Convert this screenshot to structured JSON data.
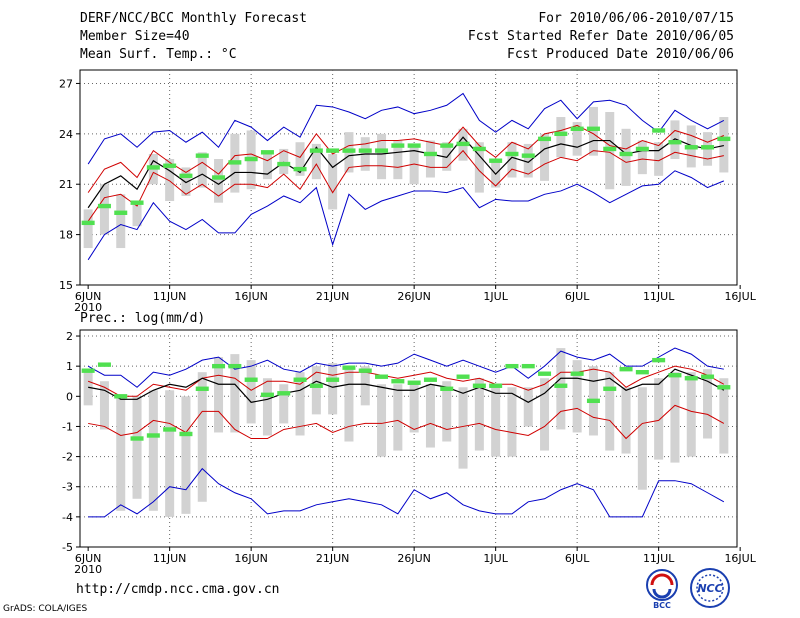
{
  "header": {
    "title": "DERF/NCC/BCC Monthly Forecast",
    "member_size": "Member Size=40",
    "variable": "Mean Surf. Temp.: °C",
    "forecast_range": "For 2010/06/06-2010/07/15",
    "start_date": "Fcst Started Refer Date 2010/06/05",
    "produced_date": "Fcst Produced Date 2010/06/06"
  },
  "footer": {
    "url": "http://cmdp.ncc.cma.gov.cn",
    "credit": "GrADS: COLA/IGES",
    "logos": [
      "BCC",
      "NCC"
    ]
  },
  "colors": {
    "max_line": "#0000c8",
    "mean_line": "#000000",
    "spread_line": "#d00000",
    "box": "#d2d2d2",
    "obs": "#50e050"
  },
  "chart_data": [
    {
      "type": "line",
      "title": "Mean Surf. Temp.: °C",
      "x_tick_labels": [
        "6JUN",
        "11JUN",
        "16JUN",
        "21JUN",
        "26JUN",
        "1JUL",
        "6JUL",
        "11JUL",
        "16JUL"
      ],
      "x_year_label": "2010",
      "y_ticks": [
        "15",
        "18",
        "21",
        "24",
        "27"
      ],
      "ylim": [
        15,
        27.8
      ],
      "grid": true,
      "days": 40,
      "series": [
        {
          "name": "max",
          "values": [
            22.2,
            23.7,
            24.0,
            23.2,
            24.1,
            24.2,
            23.5,
            24.1,
            23.2,
            24.8,
            24.4,
            23.6,
            24.4,
            23.8,
            25.7,
            25.6,
            25.3,
            24.9,
            25.4,
            25.6,
            25.2,
            25.4,
            25.7,
            26.4,
            24.8,
            24.1,
            24.8,
            24.3,
            25.5,
            26.0,
            24.9,
            25.9,
            26.0,
            25.7,
            24.8,
            24.1,
            25.4,
            24.8,
            24.3,
            24.8
          ]
        },
        {
          "name": "upper",
          "values": [
            20.5,
            21.9,
            22.3,
            21.4,
            23.0,
            22.3,
            21.7,
            22.3,
            21.6,
            22.7,
            22.8,
            22.4,
            23.0,
            22.6,
            24.0,
            22.8,
            23.3,
            23.4,
            23.6,
            23.6,
            23.7,
            23.5,
            23.3,
            24.4,
            23.3,
            22.6,
            23.5,
            23.1,
            24.0,
            24.2,
            24.5,
            24.0,
            23.3,
            23.1,
            23.6,
            23.3,
            24.2,
            23.9,
            23.5,
            23.9
          ]
        },
        {
          "name": "mean",
          "values": [
            19.6,
            21.0,
            21.5,
            20.7,
            22.4,
            21.8,
            21.1,
            21.6,
            21.0,
            21.7,
            21.7,
            21.6,
            22.3,
            21.7,
            23.2,
            22.0,
            22.7,
            22.8,
            22.8,
            22.9,
            23.0,
            22.8,
            22.6,
            23.8,
            22.7,
            21.6,
            22.6,
            22.3,
            23.1,
            23.4,
            23.2,
            23.6,
            23.6,
            22.8,
            23.0,
            23.0,
            23.7,
            23.3,
            23.1,
            23.3
          ]
        },
        {
          "name": "lower",
          "values": [
            18.8,
            20.2,
            20.4,
            19.7,
            21.7,
            21.2,
            20.4,
            21.0,
            20.3,
            21.0,
            21.0,
            20.8,
            21.6,
            20.7,
            22.2,
            20.5,
            22.0,
            22.1,
            22.1,
            22.0,
            22.2,
            22.0,
            22.0,
            23.0,
            21.8,
            20.9,
            21.9,
            21.6,
            22.2,
            22.6,
            22.4,
            23.0,
            22.9,
            22.3,
            22.5,
            22.4,
            22.9,
            22.7,
            22.5,
            22.7
          ]
        },
        {
          "name": "min",
          "values": [
            16.5,
            18.0,
            18.6,
            18.3,
            19.9,
            18.8,
            18.3,
            18.9,
            18.1,
            18.1,
            19.2,
            19.7,
            20.3,
            19.9,
            20.8,
            17.4,
            20.4,
            19.5,
            20.0,
            20.3,
            20.6,
            20.6,
            20.5,
            20.8,
            19.6,
            20.1,
            20.0,
            20.0,
            20.4,
            20.6,
            21.0,
            20.5,
            19.9,
            20.4,
            20.9,
            21.0,
            21.8,
            21.4,
            20.8,
            21.2
          ]
        },
        {
          "name": "box_top",
          "values": [
            19.5,
            21.0,
            20.4,
            19.9,
            22.8,
            22.5,
            22.0,
            22.9,
            22.5,
            24.0,
            24.2,
            22.8,
            23.1,
            23.5,
            23.4,
            22.8,
            24.1,
            23.8,
            24.0,
            23.6,
            23.2,
            23.6,
            23.5,
            24.3,
            23.5,
            22.4,
            23.5,
            23.4,
            24.0,
            25.0,
            24.7,
            25.6,
            25.3,
            24.3,
            23.6,
            23.5,
            24.8,
            24.5,
            24.1,
            25.0
          ]
        },
        {
          "name": "box_bottom",
          "values": [
            17.2,
            18.0,
            17.2,
            18.5,
            21.0,
            20.0,
            20.3,
            20.8,
            19.9,
            20.5,
            20.7,
            21.3,
            21.6,
            21.5,
            21.3,
            19.5,
            21.7,
            21.8,
            21.3,
            21.3,
            21.0,
            21.4,
            21.8,
            22.4,
            20.5,
            20.8,
            21.4,
            21.4,
            21.2,
            22.6,
            22.7,
            22.7,
            20.7,
            20.9,
            21.6,
            21.5,
            22.5,
            22.0,
            22.1,
            21.7
          ]
        },
        {
          "name": "observed",
          "values": [
            18.7,
            19.7,
            19.3,
            19.9,
            22.0,
            22.1,
            21.5,
            22.7,
            21.4,
            22.3,
            22.5,
            22.9,
            22.2,
            21.9,
            23.0,
            23.0,
            23.0,
            23.0,
            23.0,
            23.3,
            23.3,
            22.8,
            23.3,
            23.4,
            23.1,
            22.4,
            22.8,
            22.7,
            23.7,
            24.0,
            24.3,
            24.3,
            23.1,
            22.8,
            23.1,
            24.2,
            23.5,
            23.2,
            23.2,
            23.7
          ]
        }
      ]
    },
    {
      "type": "line",
      "title": "Prec.: log(mm/d)",
      "x_tick_labels": [
        "6JUN",
        "11JUN",
        "16JUN",
        "21JUN",
        "26JUN",
        "1JUL",
        "6JUL",
        "11JUL",
        "16JUL"
      ],
      "x_year_label": "2010",
      "y_ticks": [
        "-5",
        "-4",
        "-3",
        "-2",
        "-1",
        "0",
        "1",
        "2"
      ],
      "ylim": [
        -5,
        2.2
      ],
      "grid": true,
      "days": 40,
      "series": [
        {
          "name": "max",
          "values": [
            1.0,
            0.7,
            0.7,
            0.3,
            0.8,
            0.7,
            0.9,
            1.2,
            1.3,
            0.9,
            1.0,
            1.2,
            0.9,
            0.8,
            1.1,
            1.0,
            1.1,
            1.1,
            1.0,
            1.1,
            1.4,
            1.2,
            1.0,
            1.2,
            1.0,
            0.8,
            1.0,
            0.6,
            1.0,
            1.5,
            1.3,
            1.2,
            1.4,
            1.0,
            1.0,
            1.3,
            1.6,
            1.4,
            1.0,
            0.9
          ]
        },
        {
          "name": "upper",
          "values": [
            0.5,
            0.3,
            0.0,
            0.0,
            0.4,
            0.3,
            0.2,
            0.6,
            0.7,
            0.6,
            0.2,
            0.5,
            0.5,
            0.4,
            0.8,
            0.7,
            0.8,
            0.8,
            0.7,
            0.6,
            0.7,
            0.8,
            0.6,
            0.5,
            0.6,
            0.4,
            0.4,
            0.2,
            0.4,
            0.8,
            0.8,
            0.9,
            0.8,
            0.3,
            0.6,
            0.8,
            1.0,
            0.9,
            0.7,
            0.4
          ]
        },
        {
          "name": "mean",
          "values": [
            0.3,
            0.2,
            -0.1,
            -0.1,
            0.2,
            0.4,
            0.3,
            0.6,
            0.4,
            0.4,
            -0.2,
            -0.1,
            0.1,
            0.2,
            0.5,
            0.3,
            0.4,
            0.4,
            0.3,
            0.2,
            0.2,
            0.4,
            0.3,
            0.1,
            0.3,
            0.1,
            0.1,
            -0.2,
            0.1,
            0.6,
            0.6,
            0.5,
            0.6,
            0.2,
            0.4,
            0.4,
            0.9,
            0.7,
            0.5,
            0.2
          ]
        },
        {
          "name": "lower",
          "values": [
            -0.9,
            -1.0,
            -1.3,
            -1.2,
            -0.8,
            -0.9,
            -1.2,
            -0.5,
            -0.5,
            -1.1,
            -1.4,
            -1.4,
            -1.1,
            -1.0,
            -0.9,
            -1.2,
            -1.0,
            -0.9,
            -0.9,
            -0.8,
            -1.1,
            -0.9,
            -1.1,
            -1.0,
            -0.9,
            -1.1,
            -1.2,
            -1.3,
            -1.0,
            -0.5,
            -0.4,
            -0.7,
            -0.8,
            -1.4,
            -0.9,
            -0.8,
            -0.3,
            -0.5,
            -0.6,
            -0.9
          ]
        },
        {
          "name": "min",
          "values": [
            -4.0,
            -4.0,
            -3.6,
            -3.9,
            -3.5,
            -3.0,
            -3.1,
            -2.4,
            -2.9,
            -3.2,
            -3.4,
            -3.9,
            -3.8,
            -3.8,
            -3.6,
            -3.5,
            -3.4,
            -3.5,
            -3.6,
            -3.9,
            -3.1,
            -3.4,
            -3.2,
            -3.6,
            -3.8,
            -3.9,
            -3.9,
            -3.5,
            -3.4,
            -3.1,
            -2.9,
            -3.1,
            -4.0,
            -4.0,
            -4.0,
            -2.8,
            -2.8,
            -2.9,
            -3.2,
            -3.5
          ]
        },
        {
          "name": "box_top",
          "values": [
            0.9,
            0.5,
            0.0,
            0.0,
            0.2,
            0.2,
            0.0,
            0.8,
            1.3,
            1.4,
            1.2,
            0.6,
            0.4,
            0.8,
            1.0,
            1.1,
            1.0,
            1.0,
            0.4,
            0.4,
            0.4,
            0.4,
            0.5,
            0.3,
            0.6,
            0.3,
            0.3,
            0.3,
            0.6,
            1.6,
            1.2,
            1.0,
            0.8,
            0.3,
            0.3,
            0.6,
            0.8,
            0.8,
            0.9,
            0.6
          ]
        },
        {
          "name": "box_bottom",
          "values": [
            -0.3,
            -1.1,
            -3.8,
            -3.4,
            -3.8,
            -4.0,
            -3.9,
            -3.5,
            -1.2,
            -1.2,
            -0.9,
            -1.3,
            -0.9,
            -1.3,
            -0.6,
            -0.6,
            -1.5,
            -0.3,
            -2.0,
            -1.8,
            -1.2,
            -1.7,
            -1.5,
            -2.4,
            -1.8,
            -2.0,
            -2.0,
            -1.0,
            -1.8,
            -1.1,
            -1.2,
            -1.3,
            -1.8,
            -1.9,
            -3.1,
            -2.1,
            -2.2,
            -2.0,
            -1.4,
            -1.9
          ]
        },
        {
          "name": "observed",
          "values": [
            0.85,
            1.05,
            0.0,
            -1.4,
            -1.3,
            -1.1,
            -1.25,
            0.25,
            1.0,
            1.0,
            0.55,
            0.05,
            0.1,
            0.55,
            0.35,
            0.55,
            0.95,
            0.85,
            0.65,
            0.5,
            0.45,
            0.55,
            0.25,
            0.65,
            0.35,
            0.35,
            1.0,
            1.0,
            0.75,
            0.35,
            0.75,
            -0.15,
            0.25,
            0.9,
            0.8,
            1.2,
            0.7,
            0.6,
            0.65,
            0.3
          ]
        }
      ]
    }
  ]
}
